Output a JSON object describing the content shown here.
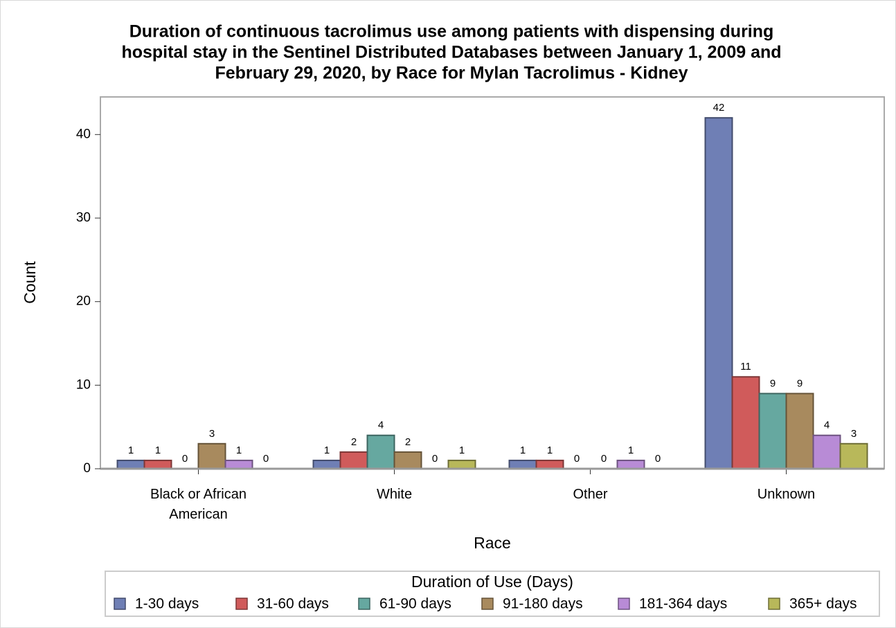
{
  "chart_data": {
    "type": "bar",
    "title": [
      "Duration of continuous tacrolimus use among patients with dispensing during",
      "hospital stay in the Sentinel Distributed Databases between January 1, 2009 and",
      "February 29, 2020, by Race for Mylan Tacrolimus - Kidney"
    ],
    "x_label": "Race",
    "y_label": "Count",
    "categories": [
      "Black or African American",
      "White",
      "Other",
      "Unknown"
    ],
    "legend_title": "Duration of Use (Days)",
    "legend_position": "bottom",
    "series": [
      {
        "name": "1-30 days",
        "color": "#6f7fb5",
        "values": [
          1,
          1,
          1,
          42
        ]
      },
      {
        "name": "31-60 days",
        "color": "#d05b5b",
        "values": [
          1,
          2,
          1,
          11
        ]
      },
      {
        "name": "61-90 days",
        "color": "#66a8a0",
        "values": [
          0,
          4,
          0,
          9
        ]
      },
      {
        "name": "91-180 days",
        "color": "#a88a5e",
        "values": [
          3,
          2,
          0,
          9
        ]
      },
      {
        "name": "181-364 days",
        "color": "#b88bd6",
        "values": [
          1,
          0,
          1,
          4
        ]
      },
      {
        "name": "365+ days",
        "color": "#b8b85a",
        "values": [
          0,
          1,
          0,
          3
        ]
      }
    ],
    "ylim": [
      0,
      44.5
    ],
    "yticks": [
      0,
      10,
      20,
      30,
      40
    ],
    "grid": false
  }
}
